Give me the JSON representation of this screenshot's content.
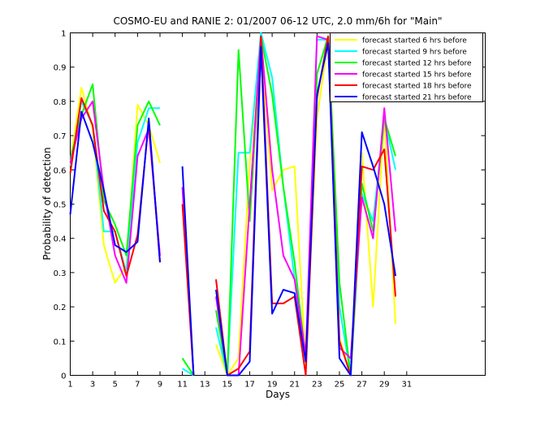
{
  "chart_data": {
    "type": "line",
    "title": "COSMO-EU and RANIE 2: 01/2007 06-12 UTC, 2.0 mm/6h for \"Main\"",
    "xlabel": "Days",
    "ylabel": "Probability of detection",
    "xlim": [
      1,
      31
    ],
    "xlim_axis_extent": 38,
    "ylim": [
      0,
      1
    ],
    "x_ticks": [
      1,
      3,
      5,
      7,
      9,
      11,
      13,
      15,
      17,
      19,
      21,
      23,
      25,
      27,
      29,
      31
    ],
    "y_ticks": [
      0,
      0.1,
      0.2,
      0.3,
      0.4,
      0.5,
      0.6,
      0.7,
      0.8,
      0.9,
      1
    ],
    "y_tick_labels": [
      "0",
      "0.1",
      "0.2",
      "0.3",
      "0.4",
      "0.5",
      "0.6",
      "0.7",
      "0.8",
      "0.9",
      "1"
    ],
    "grid": false,
    "legend_position": "top-right",
    "series": [
      {
        "name": "forecast started 6 hrs before",
        "color": "#ffff00",
        "values": [
          0.62,
          0.84,
          0.72,
          0.38,
          0.27,
          0.32,
          0.79,
          0.73,
          0.62,
          null,
          0.55,
          0.0,
          null,
          0.09,
          0.0,
          0.05,
          0.62,
          0.98,
          0.54,
          0.6,
          0.61,
          0.03,
          0.75,
          0.98,
          0.11,
          0.0,
          0.65,
          0.2,
          0.76,
          0.15,
          null
        ]
      },
      {
        "name": "forecast started 9 hrs before",
        "color": "#00ffff",
        "values": [
          0.61,
          0.8,
          0.73,
          0.42,
          0.42,
          0.3,
          0.68,
          0.78,
          0.78,
          null,
          0.02,
          0.0,
          null,
          0.14,
          0.0,
          0.65,
          0.65,
          1.0,
          0.87,
          0.55,
          0.28,
          0.05,
          0.98,
          0.98,
          0.2,
          0.0,
          0.53,
          0.45,
          0.75,
          0.6,
          null
        ]
      },
      {
        "name": "forecast started 12 hrs before",
        "color": "#00ff00",
        "values": [
          0.63,
          0.76,
          0.85,
          0.51,
          0.44,
          0.35,
          0.73,
          0.8,
          0.73,
          null,
          0.05,
          0.0,
          null,
          0.19,
          0.0,
          0.95,
          0.45,
          0.99,
          0.82,
          0.55,
          0.33,
          0.05,
          0.88,
          0.99,
          0.27,
          0.0,
          0.56,
          0.42,
          0.75,
          0.64,
          null
        ]
      },
      {
        "name": "forecast started 15 hrs before",
        "color": "#ff00ff",
        "values": [
          0.62,
          0.75,
          0.8,
          0.54,
          0.35,
          0.27,
          0.64,
          0.72,
          0.35,
          null,
          0.55,
          0.0,
          null,
          0.23,
          0.0,
          0.0,
          0.5,
          0.99,
          0.6,
          0.35,
          0.28,
          0.06,
          0.99,
          0.98,
          0.08,
          0.05,
          0.52,
          0.4,
          0.78,
          0.42,
          null
        ]
      },
      {
        "name": "forecast started 18 hrs before",
        "color": "#ff0000",
        "values": [
          0.59,
          0.81,
          0.73,
          0.48,
          0.42,
          0.29,
          0.41,
          0.74,
          0.33,
          null,
          0.5,
          0.0,
          null,
          0.28,
          0.0,
          0.02,
          0.07,
          0.99,
          0.21,
          0.21,
          0.23,
          0.0,
          0.81,
          0.99,
          0.1,
          0.0,
          0.61,
          0.6,
          0.66,
          0.23,
          null
        ]
      },
      {
        "name": "forecast started 21 hrs before",
        "color": "#0000ff",
        "values": [
          0.47,
          0.77,
          0.68,
          0.54,
          0.38,
          0.36,
          0.39,
          0.75,
          0.33,
          null,
          0.61,
          0.0,
          null,
          0.25,
          0.0,
          0.0,
          0.04,
          0.96,
          0.18,
          0.25,
          0.24,
          0.04,
          0.82,
          0.97,
          0.05,
          0.0,
          0.71,
          0.61,
          0.5,
          0.29,
          null
        ]
      }
    ]
  }
}
